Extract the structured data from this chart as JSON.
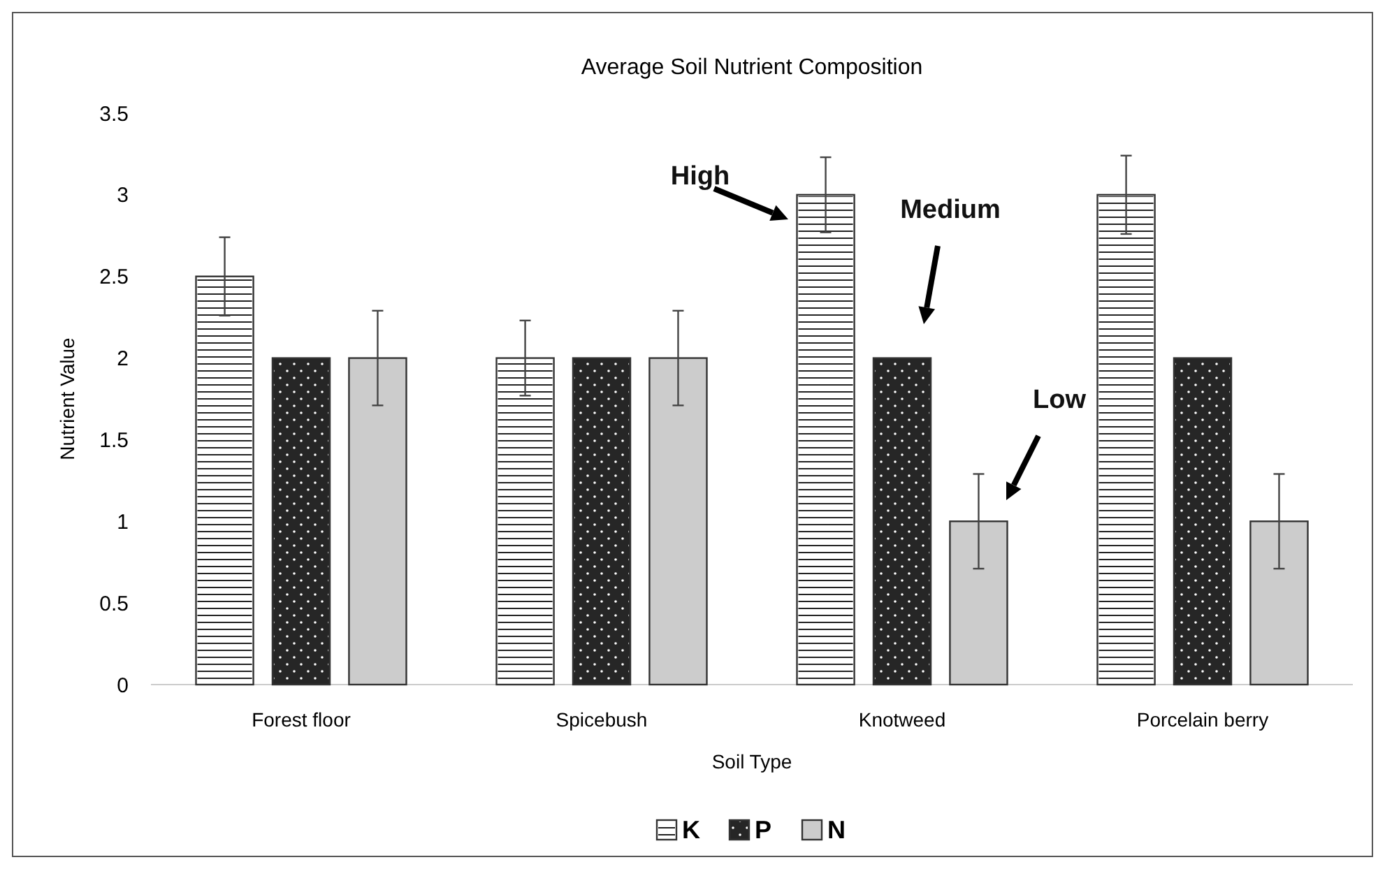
{
  "chart_data": {
    "type": "bar",
    "title": "Average Soil Nutrient Composition",
    "xlabel": "Soil Type",
    "ylabel": "Nutrient Value",
    "categories": [
      "Forest floor",
      "Spicebush",
      "Knotweed",
      "Porcelain berry"
    ],
    "series": [
      {
        "name": "K",
        "color": "#ffffff",
        "values": [
          2.5,
          2,
          3,
          3
        ],
        "errors": [
          0.24,
          0.23,
          0.23,
          0.24
        ]
      },
      {
        "name": "P",
        "color": "#262626",
        "values": [
          2,
          2,
          2,
          2
        ],
        "errors": [
          null,
          null,
          null,
          null
        ]
      },
      {
        "name": "N",
        "color": "#cccccc",
        "values": [
          2,
          2,
          1,
          1
        ],
        "errors": [
          0.29,
          0.29,
          0.29,
          0.29
        ]
      }
    ],
    "ylim": [
      0,
      3.5
    ],
    "yticks": [
      0,
      0.5,
      1,
      1.5,
      2,
      2.5,
      3,
      3.5
    ],
    "grid": false,
    "legend": "bottom",
    "annotations": [
      "High",
      "Medium",
      "Low"
    ]
  }
}
